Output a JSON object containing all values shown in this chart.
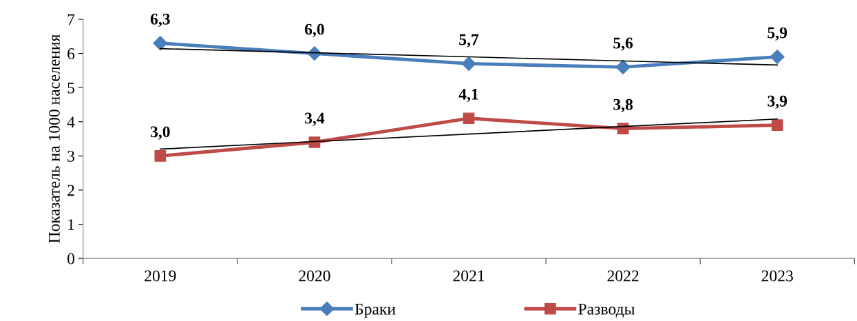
{
  "chart_data": {
    "type": "line",
    "ylabel": "Показатель на 1000 населения",
    "categories": [
      "2019",
      "2020",
      "2021",
      "2022",
      "2023"
    ],
    "series": [
      {
        "name": "Браки",
        "color": "#4a7ebb",
        "marker": "diamond",
        "values": [
          6.3,
          6.0,
          5.7,
          5.6,
          5.9
        ],
        "value_labels": [
          "6,3",
          "6,0",
          "5,7",
          "5,6",
          "5,9"
        ]
      },
      {
        "name": "Разводы",
        "color": "#be4b48",
        "marker": "square",
        "values": [
          3.0,
          3.4,
          4.1,
          3.8,
          3.9
        ],
        "value_labels": [
          "3,0",
          "3,4",
          "4,1",
          "3,8",
          "3,9"
        ]
      },
      {
        "type": "line",
        "color": "#000000",
        "marker": "none",
        "values": [
          6.14,
          6.02,
          5.9,
          5.78,
          5.66
        ]
      },
      {
        "type": "line",
        "color": "#000000",
        "marker": "none",
        "values": [
          3.2,
          3.42,
          3.64,
          3.86,
          4.08
        ]
      }
    ],
    "ylim": [
      0,
      7
    ],
    "yticks": [
      0,
      1,
      2,
      3,
      4,
      5,
      6,
      7
    ],
    "grid": false,
    "legend": "bottom"
  }
}
